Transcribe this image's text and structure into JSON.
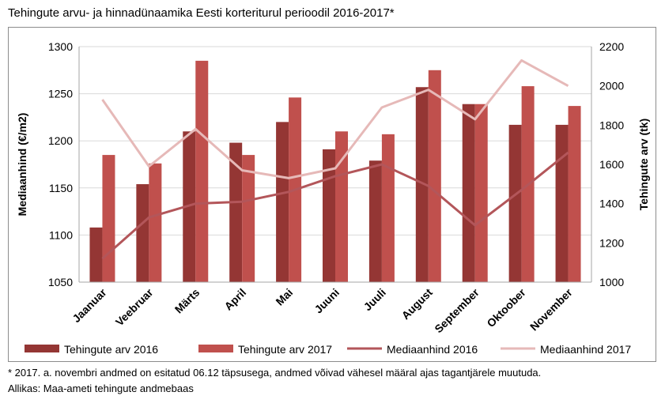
{
  "title": "Tehingute arvu- ja hinnadünaamika  Eesti korteriturul perioodil 2016-2017*",
  "footnote": "* 2017. a. novembri andmed on esitatud 06.12 täpsusega, andmed võivad vähesel määral ajas tagantjärele muutuda.",
  "source": "Allikas: Maa-ameti tehingute andmebaas",
  "colors": {
    "bar2016": "#943634",
    "bar2017": "#c0504d",
    "line2016": "#b3565a",
    "line2017": "#e6b9b8",
    "grid": "#d9d9d9"
  },
  "chart_data": {
    "type": "bar",
    "categories": [
      "Jaanuar",
      "Veebruar",
      "Märts",
      "April",
      "Mai",
      "Juuni",
      "Juuli",
      "August",
      "September",
      "Oktoober",
      "November"
    ],
    "ylabel": "Mediaanhind (€/m2)",
    "ylim": [
      1050,
      1300
    ],
    "yticks": [
      "1050",
      "1100",
      "1150",
      "1200",
      "1250",
      "1300"
    ],
    "y2label": "Tehingute arv (tk)",
    "y2lim": [
      1000,
      2200
    ],
    "y2ticks": [
      "1000",
      "1200",
      "1400",
      "1600",
      "1800",
      "2000",
      "2200"
    ],
    "grid": true,
    "legend_position": "bottom",
    "series": [
      {
        "name": "Tehingute arv 2016",
        "kind": "bar",
        "axis": "left",
        "values": [
          1108,
          1154,
          1210,
          1198,
          1220,
          1191,
          1179,
          1257,
          1239,
          1217,
          1217
        ]
      },
      {
        "name": "Tehingute arv 2017",
        "kind": "bar",
        "axis": "left",
        "values": [
          1185,
          1176,
          1285,
          1185,
          1246,
          1210,
          1207,
          1275,
          1239,
          1258,
          1237
        ]
      },
      {
        "name": "Mediaanhind 2016",
        "kind": "line",
        "axis": "right",
        "values": [
          1120,
          1330,
          1400,
          1410,
          1460,
          1540,
          1600,
          1490,
          1290,
          1470,
          1660
        ]
      },
      {
        "name": "Mediaanhind 2017",
        "kind": "line",
        "axis": "right",
        "values": [
          1930,
          1590,
          1780,
          1570,
          1530,
          1580,
          1890,
          1980,
          1830,
          2130,
          2000
        ]
      }
    ]
  }
}
